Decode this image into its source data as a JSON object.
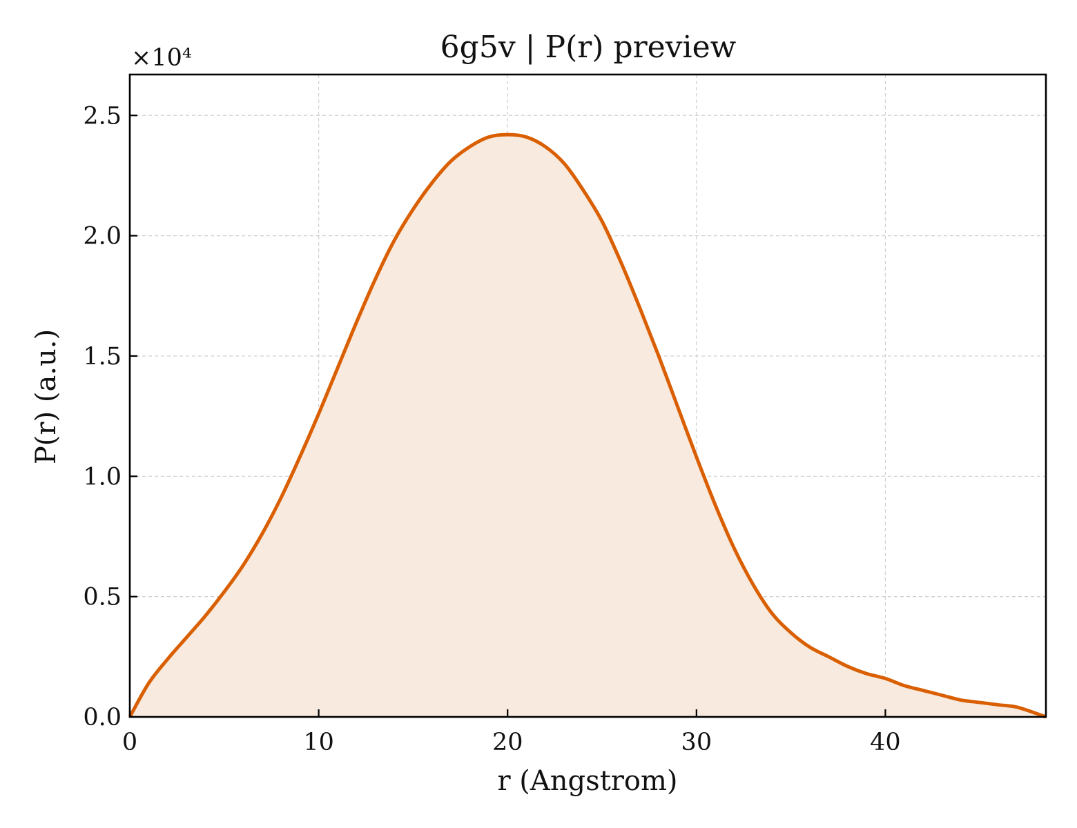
{
  "chart_data": {
    "type": "area",
    "title": "6g5v | P(r) preview",
    "xlabel": "r (Angstrom)",
    "ylabel": "P(r) (a.u.)",
    "y_multiplier_label": "×10⁴",
    "xlim": [
      0,
      48.5
    ],
    "ylim": [
      0,
      2.67
    ],
    "x_ticks": [
      0,
      10,
      20,
      30,
      40
    ],
    "x_tick_labels": [
      "0",
      "10",
      "20",
      "30",
      "40"
    ],
    "y_ticks": [
      0,
      0.5,
      1,
      1.5,
      2,
      2.5
    ],
    "y_tick_labels": [
      "0.0",
      "0.5",
      "1.0",
      "1.5",
      "2.0",
      "2.5"
    ],
    "grid": true,
    "line_color": "#D95F02",
    "fill_color": "#F8EADF",
    "series": [
      {
        "x": [
          0,
          1,
          2,
          3,
          4,
          5,
          6,
          7,
          8,
          9,
          10,
          11,
          12,
          13,
          14,
          15,
          16,
          17,
          18,
          19,
          20,
          21,
          22,
          23,
          24,
          25,
          26,
          27,
          28,
          29,
          30,
          31,
          32,
          33,
          34,
          35,
          36,
          37,
          38,
          39,
          40,
          41,
          42,
          43,
          44,
          45,
          46,
          47,
          48.5
        ],
        "y": [
          0,
          0.14,
          0.24,
          0.33,
          0.42,
          0.52,
          0.63,
          0.76,
          0.91,
          1.08,
          1.26,
          1.45,
          1.64,
          1.82,
          1.98,
          2.11,
          2.22,
          2.31,
          2.37,
          2.41,
          2.42,
          2.41,
          2.37,
          2.3,
          2.19,
          2.06,
          1.89,
          1.7,
          1.5,
          1.29,
          1.08,
          0.88,
          0.7,
          0.55,
          0.43,
          0.35,
          0.29,
          0.25,
          0.21,
          0.18,
          0.16,
          0.13,
          0.11,
          0.09,
          0.07,
          0.06,
          0.05,
          0.04,
          0.0
        ]
      }
    ]
  }
}
